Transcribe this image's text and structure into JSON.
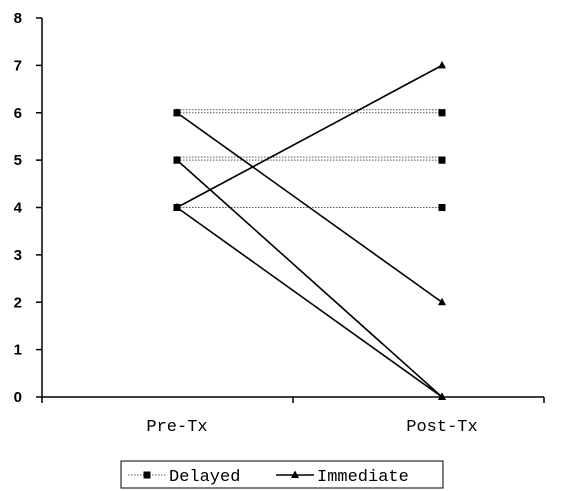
{
  "chart_data": {
    "type": "line",
    "categories": [
      "Pre-Tx",
      "Post-Tx"
    ],
    "ylim": [
      0,
      8
    ],
    "yticks": [
      0,
      1,
      2,
      3,
      4,
      5,
      6,
      7,
      8
    ],
    "grid": false,
    "legend_position": "bottom",
    "series": [
      {
        "name": "Delayed",
        "style": "dotted",
        "marker": "square",
        "values": [
          6,
          6
        ]
      },
      {
        "name": "Delayed",
        "style": "dotted",
        "marker": "square",
        "values": [
          6,
          6
        ]
      },
      {
        "name": "Delayed",
        "style": "dotted",
        "marker": "square",
        "values": [
          5,
          5
        ]
      },
      {
        "name": "Delayed",
        "style": "dotted",
        "marker": "square",
        "values": [
          5,
          5
        ]
      },
      {
        "name": "Delayed",
        "style": "dotted",
        "marker": "square",
        "values": [
          4,
          4
        ]
      },
      {
        "name": "Immediate",
        "style": "solid",
        "marker": "triangle",
        "values": [
          4,
          7
        ]
      },
      {
        "name": "Immediate",
        "style": "solid",
        "marker": "triangle",
        "values": [
          6,
          2
        ]
      },
      {
        "name": "Immediate",
        "style": "solid",
        "marker": "triangle",
        "values": [
          5,
          0
        ]
      },
      {
        "name": "Immediate",
        "style": "solid",
        "marker": "triangle",
        "values": [
          4,
          0
        ]
      }
    ],
    "legend": [
      {
        "label": "Delayed",
        "style": "dotted",
        "marker": "square"
      },
      {
        "label": "Immediate",
        "style": "solid",
        "marker": "triangle"
      }
    ],
    "colors": {
      "line": "#000000",
      "dotted": "#555555"
    }
  }
}
